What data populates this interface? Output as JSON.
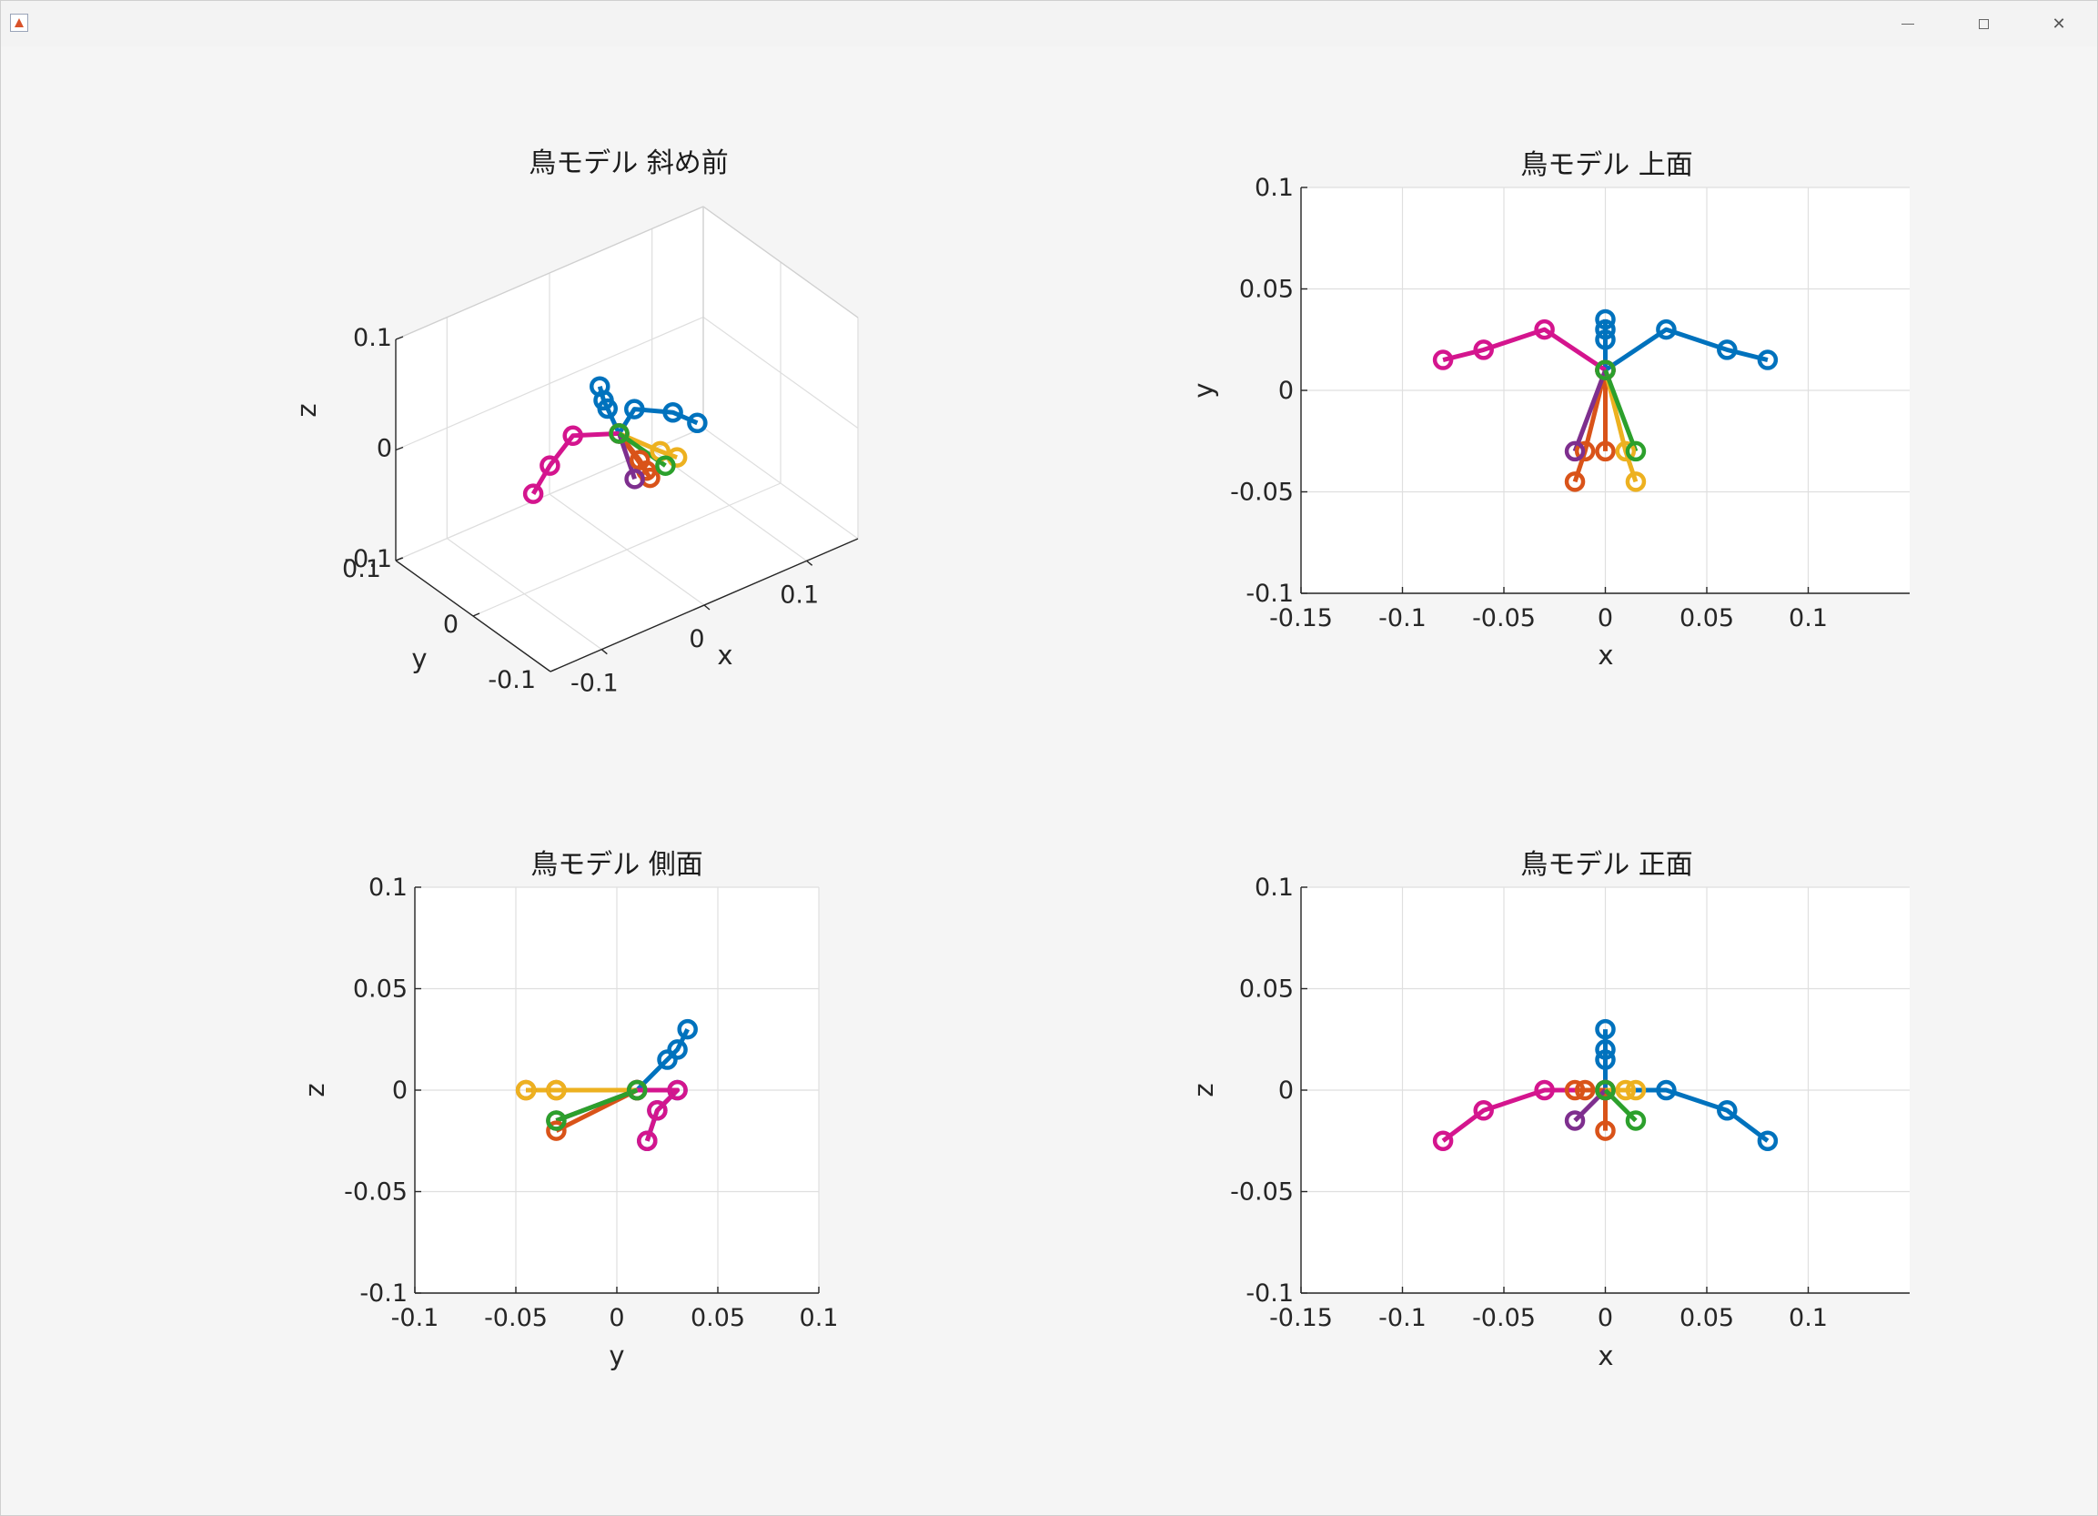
{
  "window": {
    "minimize_icon": "minimize-icon",
    "maximize_icon": "maximize-icon",
    "close_icon": "close-icon",
    "app_icon": "matlab-icon"
  },
  "series_colors": {
    "blue": "#0072BD",
    "orange": "#D95319",
    "yellow": "#EDB120",
    "purple": "#7E2F8E",
    "green": "#2CA02C",
    "magenta": "#D4158E"
  },
  "chart_data": [
    {
      "type": "line",
      "view": "3d",
      "title": "鳥モデル 斜め前",
      "xlabel": "x",
      "ylabel": "y",
      "zlabel": "z",
      "xlim": [
        -0.15,
        0.15
      ],
      "ylim": [
        -0.1,
        0.1
      ],
      "zlim": [
        -0.1,
        0.1
      ],
      "xticks": [
        "-0.1",
        "0",
        "0.1"
      ],
      "yticks": [
        "-0.1",
        "0",
        "0.1"
      ],
      "zticks": [
        "-0.1",
        "0",
        "0.1"
      ],
      "grid": true,
      "marker": "circle"
    },
    {
      "type": "line",
      "view": "top",
      "title": "鳥モデル 上面",
      "xlabel": "x",
      "ylabel": "y",
      "xlim": [
        -0.15,
        0.15
      ],
      "ylim": [
        -0.1,
        0.1
      ],
      "xticks": [
        "-0.15",
        "-0.1",
        "-0.05",
        "0",
        "0.05",
        "0.1"
      ],
      "yticks": [
        "-0.1",
        "-0.05",
        "0",
        "0.05",
        "0.1"
      ],
      "grid": true,
      "marker": "circle"
    },
    {
      "type": "line",
      "view": "side",
      "title": "鳥モデル 側面",
      "xlabel": "y",
      "ylabel": "z",
      "xlim": [
        -0.1,
        0.1
      ],
      "ylim": [
        -0.1,
        0.1
      ],
      "xticks": [
        "-0.1",
        "-0.05",
        "0",
        "0.05",
        "0.1"
      ],
      "yticks": [
        "-0.1",
        "-0.05",
        "0",
        "0.05",
        "0.1"
      ],
      "grid": true,
      "marker": "circle"
    },
    {
      "type": "line",
      "view": "front",
      "title": "鳥モデル 正面",
      "xlabel": "x",
      "ylabel": "z",
      "xlim": [
        -0.15,
        0.15
      ],
      "ylim": [
        -0.1,
        0.1
      ],
      "xticks": [
        "-0.15",
        "-0.1",
        "-0.05",
        "0",
        "0.05",
        "0.1"
      ],
      "yticks": [
        "-0.1",
        "-0.05",
        "0",
        "0.05",
        "0.1"
      ],
      "grid": true,
      "marker": "circle"
    }
  ],
  "model": {
    "points_xyz": [
      {
        "color": "blue",
        "pts": [
          [
            0,
            0.01,
            0
          ],
          [
            0,
            0.025,
            0.015
          ],
          [
            0,
            0.03,
            0.02
          ],
          [
            0,
            0.035,
            0.03
          ]
        ]
      },
      {
        "color": "blue",
        "pts": [
          [
            0,
            0.01,
            0
          ],
          [
            0.03,
            0.03,
            0
          ],
          [
            0.06,
            0.02,
            -0.01
          ],
          [
            0.08,
            0.015,
            -0.025
          ]
        ]
      },
      {
        "color": "magenta",
        "pts": [
          [
            0,
            0.01,
            0
          ],
          [
            -0.03,
            0.03,
            0
          ],
          [
            -0.06,
            0.02,
            -0.01
          ],
          [
            -0.08,
            0.015,
            -0.025
          ]
        ]
      },
      {
        "color": "orange",
        "pts": [
          [
            0,
            0.01,
            0
          ],
          [
            0,
            -0.03,
            -0.02
          ]
        ]
      },
      {
        "color": "orange",
        "pts": [
          [
            0,
            0.01,
            0
          ],
          [
            -0.01,
            -0.03,
            0
          ],
          [
            -0.015,
            -0.045,
            0
          ]
        ]
      },
      {
        "color": "yellow",
        "pts": [
          [
            0,
            0.01,
            0
          ],
          [
            0.01,
            -0.03,
            0
          ],
          [
            0.015,
            -0.045,
            0
          ]
        ]
      },
      {
        "color": "purple",
        "pts": [
          [
            0,
            0.01,
            0
          ],
          [
            -0.015,
            -0.03,
            -0.015
          ]
        ]
      },
      {
        "color": "green",
        "pts": [
          [
            0,
            0.01,
            0
          ],
          [
            0.015,
            -0.03,
            -0.015
          ]
        ]
      }
    ]
  }
}
